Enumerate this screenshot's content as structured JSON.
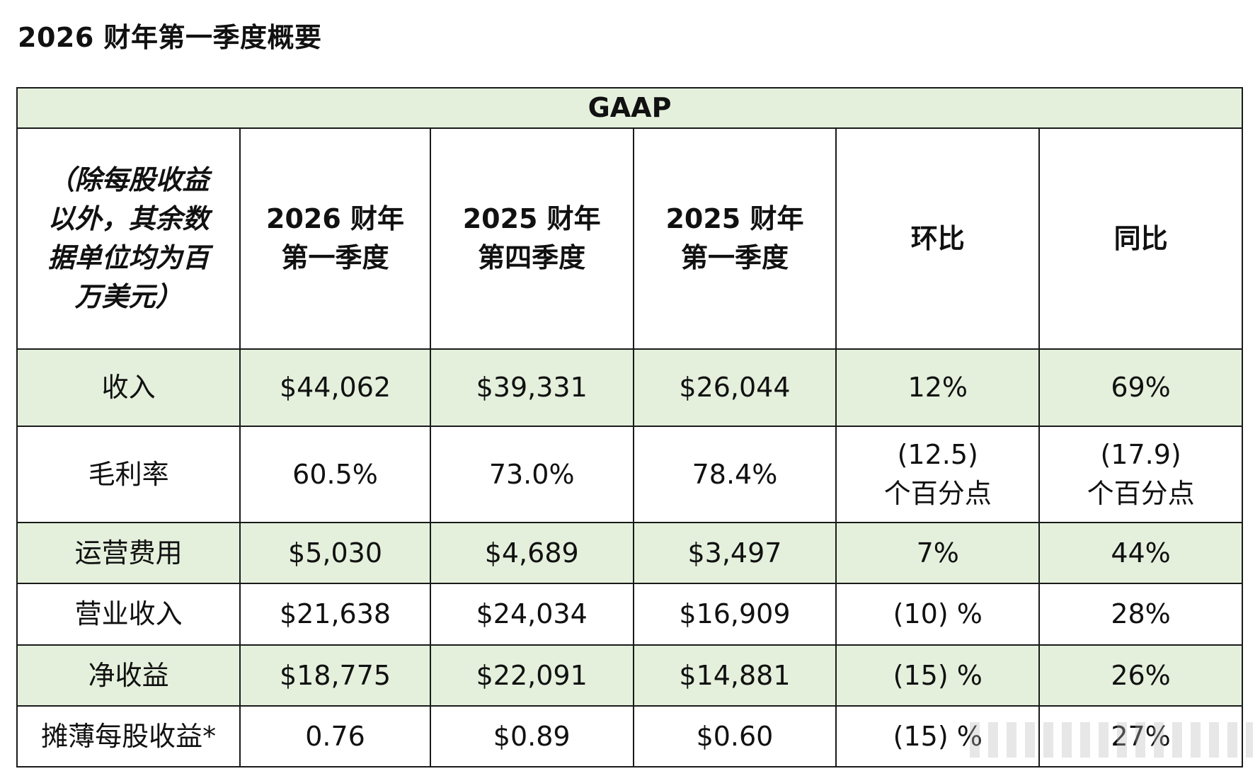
{
  "title": "2026 财年第一季度概要",
  "table": {
    "group_header": "GAAP",
    "unit_note": [
      "（除每股收益",
      "以外，其余数",
      "据单位均为百",
      "万美元）"
    ],
    "columns": [
      {
        "line1": "2026 财年",
        "line2": "第一季度"
      },
      {
        "line1": "2025 财年",
        "line2": "第四季度"
      },
      {
        "line1": "2025 财年",
        "line2": "第一季度"
      },
      {
        "line1": "环比",
        "line2": ""
      },
      {
        "line1": "同比",
        "line2": ""
      }
    ],
    "rows": [
      {
        "label": "收入",
        "values": [
          "$44,062",
          "$39,331",
          "$26,044",
          "12%",
          "69%"
        ]
      },
      {
        "label": "毛利率",
        "values": [
          "60.5%",
          "73.0%",
          "78.4%"
        ],
        "qoq": [
          "(12.5)",
          "个百分点"
        ],
        "yoy": [
          "(17.9)",
          "个百分点"
        ]
      },
      {
        "label": "运营费用",
        "values": [
          "$5,030",
          "$4,689",
          "$3,497",
          "7%",
          "44%"
        ]
      },
      {
        "label": "营业收入",
        "values": [
          "$21,638",
          "$24,034",
          "$16,909",
          "(10) %",
          "28%"
        ]
      },
      {
        "label": "净收益",
        "values": [
          "$18,775",
          "$22,091",
          "$14,881",
          "(15) %",
          "26%"
        ]
      },
      {
        "label": "摊薄每股收益*",
        "values": [
          "0.76",
          "$0.89",
          "$0.60",
          "(15) %",
          "27%"
        ]
      }
    ]
  }
}
